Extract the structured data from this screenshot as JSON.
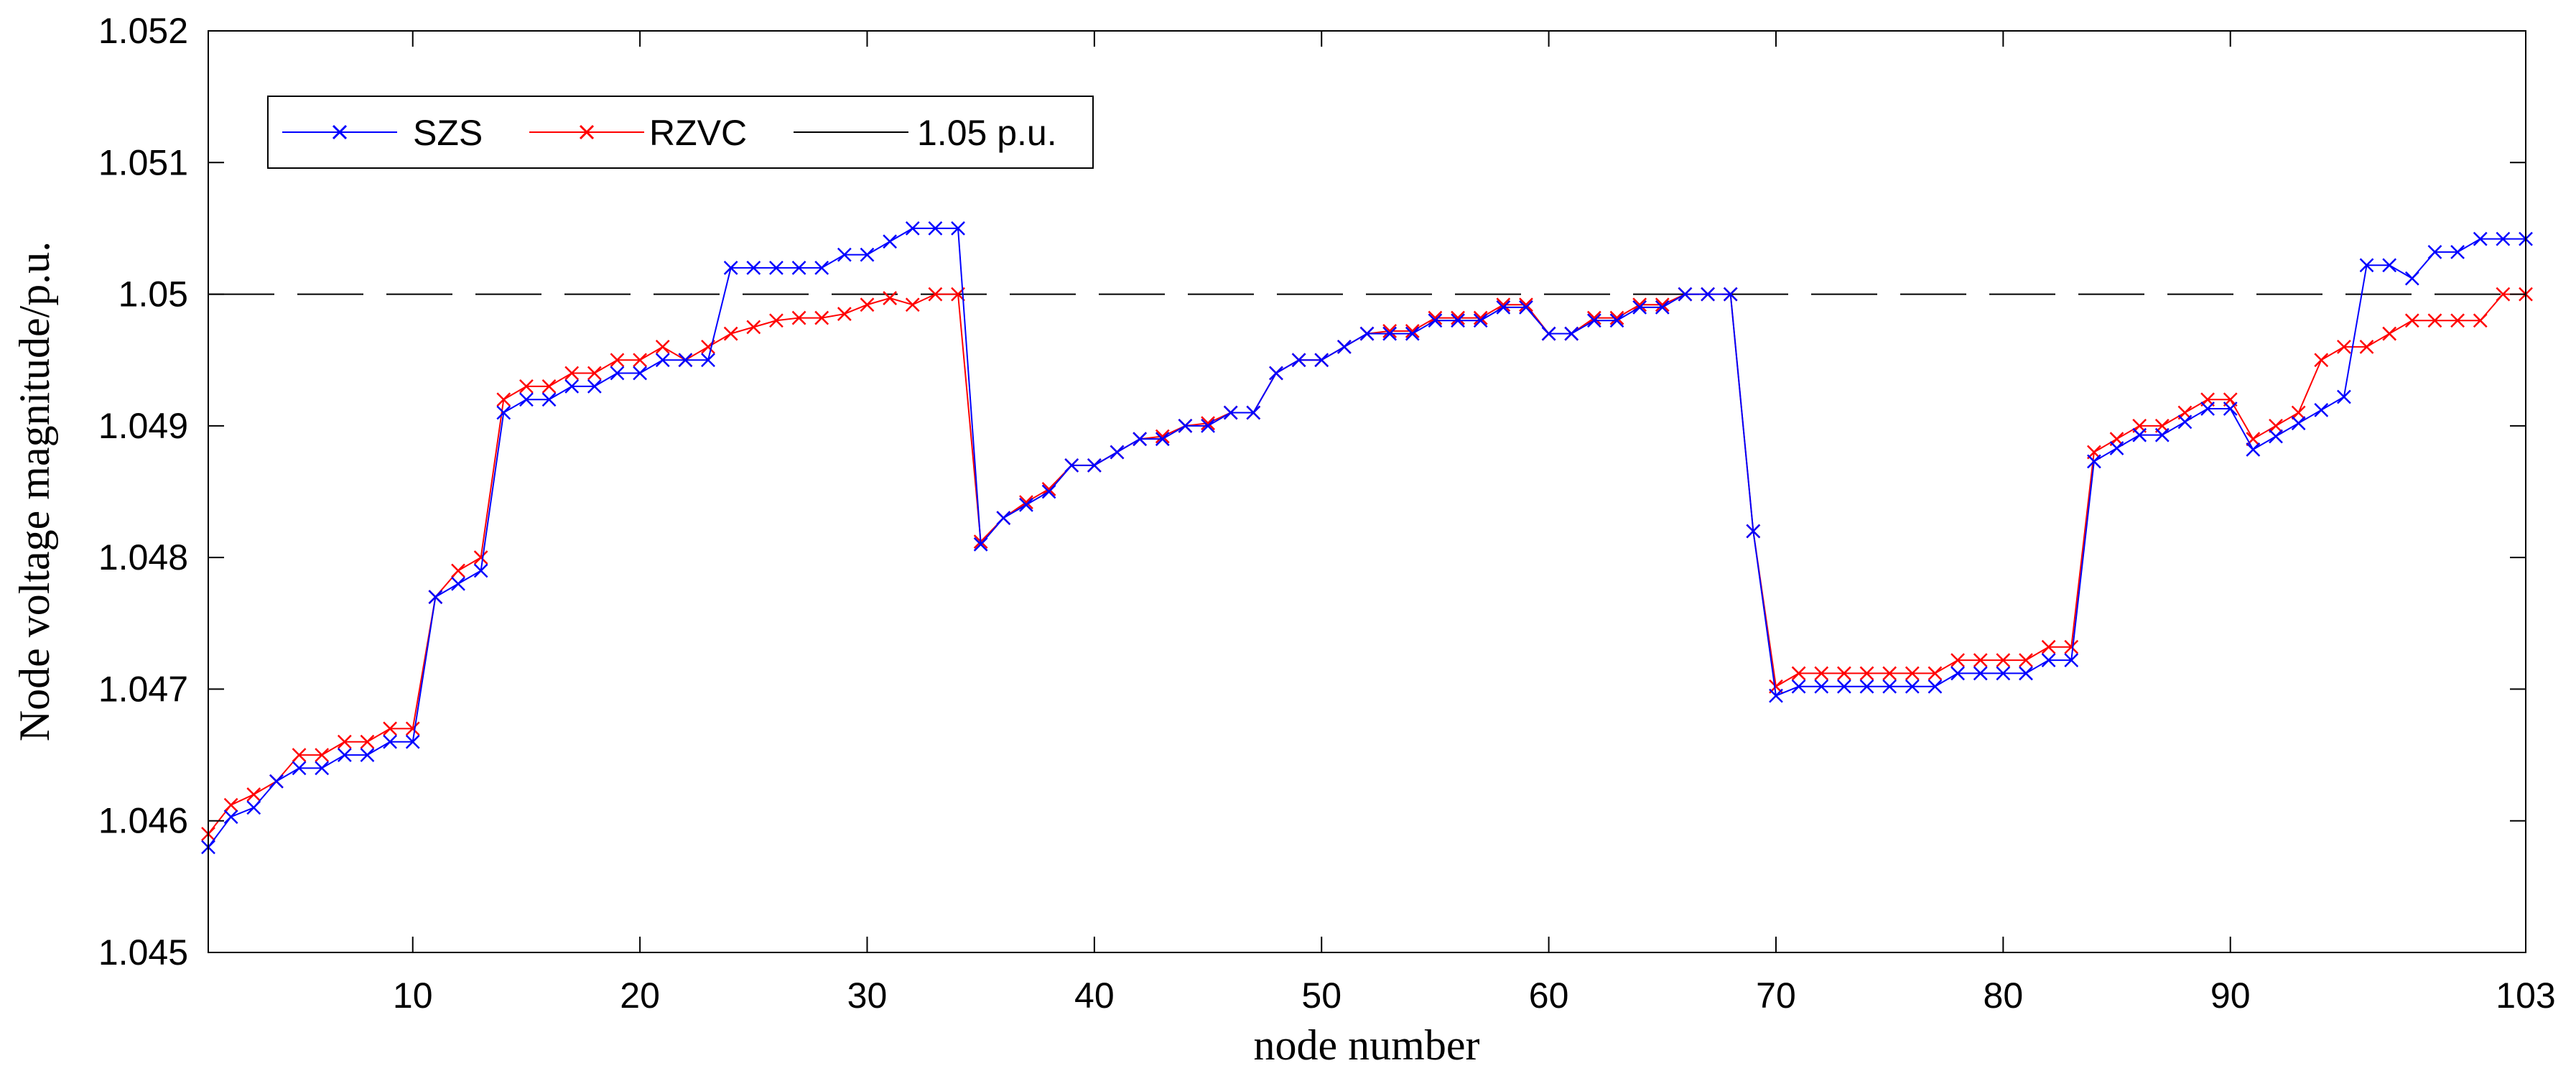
{
  "chart_data": {
    "type": "line",
    "title": "",
    "xlabel": "node number",
    "ylabel": "Node voltage magnitude/p.u.",
    "xlim": [
      1,
      103
    ],
    "ylim": [
      1.045,
      1.052
    ],
    "xticks": [
      10,
      20,
      30,
      40,
      50,
      60,
      70,
      80,
      90,
      103
    ],
    "yticks": [
      1.045,
      1.046,
      1.047,
      1.048,
      1.049,
      1.05,
      1.051,
      1.052
    ],
    "ytick_labels": [
      "1.045",
      "1.046",
      "1.047",
      "1.048",
      "1.049",
      "1.05",
      "1.051",
      "1.052"
    ],
    "legend_position": "top-left",
    "grid": false,
    "x_start": 1,
    "series": [
      {
        "name": "SZS",
        "color": "#0000ff",
        "marker": "x",
        "values": [
          1.0458,
          1.04603,
          1.0461,
          1.0463,
          1.0464,
          1.0464,
          1.0465,
          1.0465,
          1.0466,
          1.0466,
          1.0477,
          1.0478,
          1.0479,
          1.0491,
          1.0492,
          1.0492,
          1.0493,
          1.0493,
          1.0494,
          1.0494,
          1.0495,
          1.0495,
          1.0495,
          1.0502,
          1.0502,
          1.0502,
          1.0502,
          1.0502,
          1.0503,
          1.0503,
          1.0504,
          1.0505,
          1.0505,
          1.0505,
          1.0481,
          1.0483,
          1.0484,
          1.0485,
          1.0487,
          1.0487,
          1.0488,
          1.0489,
          1.0489,
          1.049,
          1.049,
          1.0491,
          1.0491,
          1.0494,
          1.0495,
          1.0495,
          1.0496,
          1.0497,
          1.0497,
          1.0497,
          1.0498,
          1.0498,
          1.0498,
          1.0499,
          1.0499,
          1.0497,
          1.0497,
          1.0498,
          1.0498,
          1.0499,
          1.0499,
          1.05,
          1.05,
          1.05,
          1.0482,
          1.04695,
          1.04702,
          1.04702,
          1.04702,
          1.04702,
          1.04702,
          1.04702,
          1.04702,
          1.04712,
          1.04712,
          1.04712,
          1.04712,
          1.04722,
          1.04722,
          1.04873,
          1.04883,
          1.04893,
          1.04893,
          1.04903,
          1.04913,
          1.04913,
          1.04882,
          1.04892,
          1.04902,
          1.04912,
          1.04922,
          1.05022,
          1.05022,
          1.05012,
          1.05032,
          1.05032,
          1.05042,
          1.05042,
          1.05042
        ]
      },
      {
        "name": "RZVC",
        "color": "#ff0000",
        "marker": "x",
        "values": [
          1.0459,
          1.04612,
          1.0462,
          1.0463,
          1.0465,
          1.0465,
          1.0466,
          1.0466,
          1.0467,
          1.0467,
          1.0477,
          1.0479,
          1.048,
          1.0492,
          1.0493,
          1.0493,
          1.0494,
          1.0494,
          1.0495,
          1.0495,
          1.0496,
          1.0495,
          1.0496,
          1.0497,
          1.04975,
          1.0498,
          1.04982,
          1.04982,
          1.04985,
          1.04992,
          1.04997,
          1.04992,
          1.05,
          1.05,
          1.04812,
          1.0483,
          1.04842,
          1.04852,
          1.0487,
          1.0487,
          1.0488,
          1.0489,
          1.04892,
          1.049,
          1.04902,
          1.0491,
          1.0491,
          1.0494,
          1.0495,
          1.0495,
          1.0496,
          1.0497,
          1.04972,
          1.04972,
          1.04982,
          1.04982,
          1.04982,
          1.04992,
          1.04992,
          1.0497,
          1.0497,
          1.04982,
          1.04982,
          1.04992,
          1.04992,
          1.05,
          1.05,
          1.05,
          1.0482,
          1.04702,
          1.04712,
          1.04712,
          1.04712,
          1.04712,
          1.04712,
          1.04712,
          1.04712,
          1.04722,
          1.04722,
          1.04722,
          1.04722,
          1.04732,
          1.04732,
          1.0488,
          1.0489,
          1.049,
          1.049,
          1.0491,
          1.0492,
          1.0492,
          1.0489,
          1.049,
          1.0491,
          1.0495,
          1.0496,
          1.0496,
          1.0497,
          1.0498,
          1.0498,
          1.0498,
          1.0498,
          1.05,
          1.05
        ]
      },
      {
        "name": "1.05 p.u.",
        "color": "#000000",
        "style": "dashed",
        "y": 1.05
      }
    ]
  }
}
